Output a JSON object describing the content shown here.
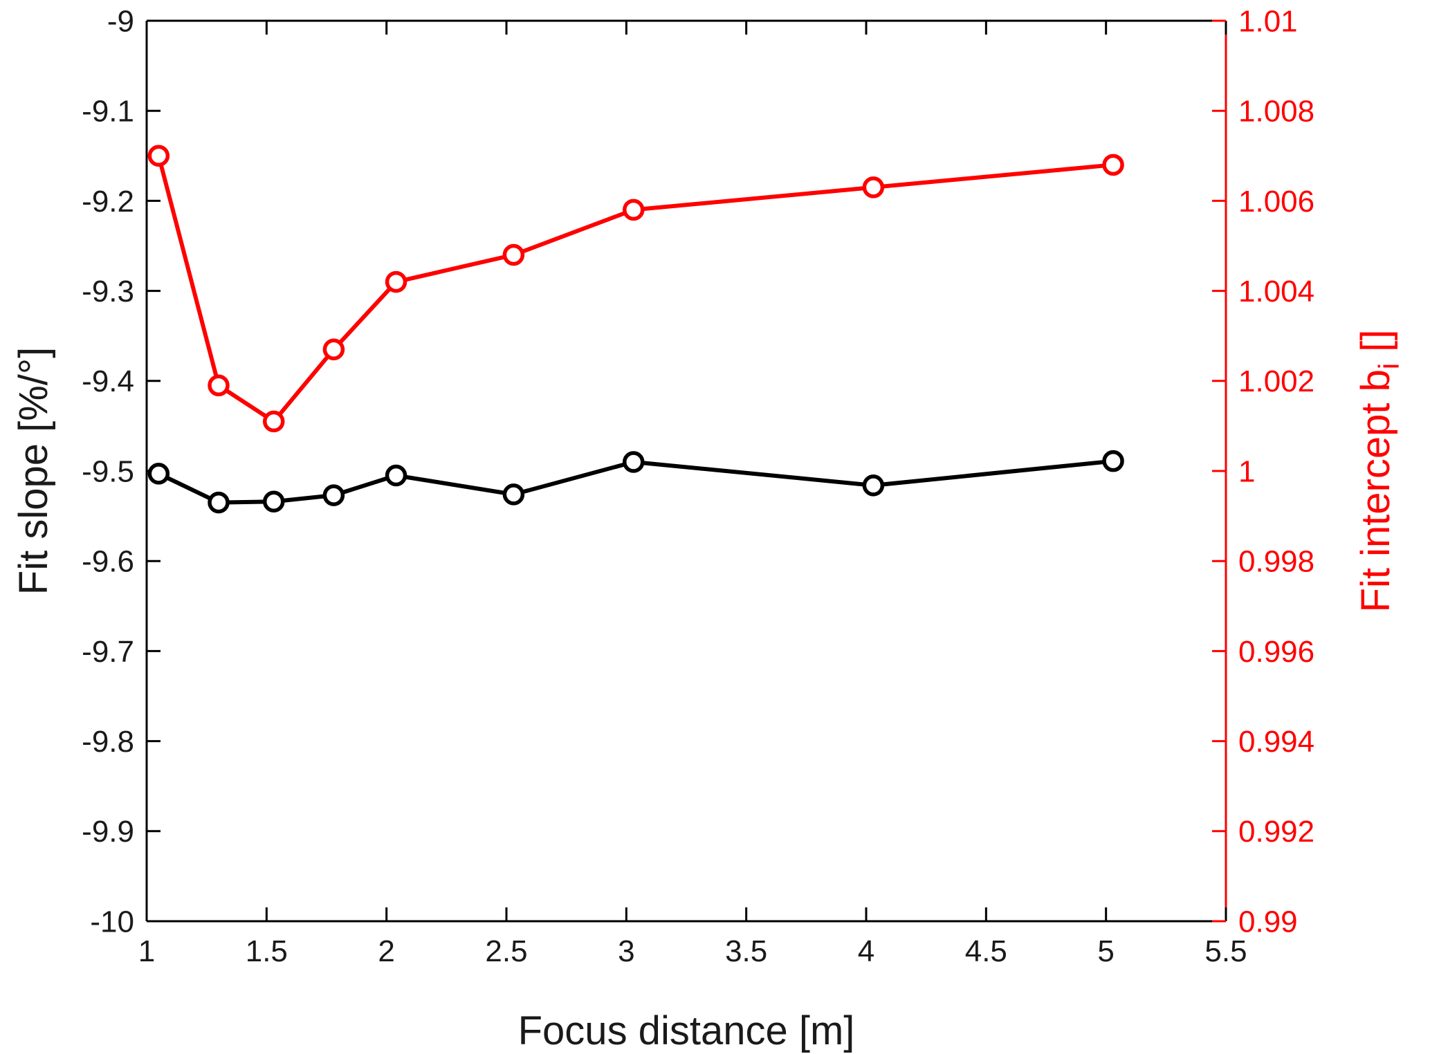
{
  "figure": {
    "background": "#ffffff"
  },
  "colors": {
    "left_axis": "#000000",
    "right_axis": "#ff0000",
    "tick_label": "#1a1a1a",
    "slope_series": "#000000",
    "intercept_series": "#ff0000"
  },
  "chart_data": {
    "type": "line",
    "title": "",
    "xlabel": "Focus distance [m]",
    "ylabel_left": "Fit slope [%/°]",
    "ylabel_right": {
      "pre": "Fit intercept b",
      "sub": "i",
      "post": " []"
    },
    "xlim": [
      1,
      5.5
    ],
    "ylim_left": [
      -10,
      -9
    ],
    "ylim_right": [
      0.99,
      1.01
    ],
    "grid": false,
    "legend": "none",
    "x_ticks": [
      1,
      1.5,
      2,
      2.5,
      3,
      3.5,
      4,
      4.5,
      5,
      5.5
    ],
    "x_tick_labels": [
      "1",
      "1.5",
      "2",
      "2.5",
      "3",
      "3.5",
      "4",
      "4.5",
      "5",
      "5.5"
    ],
    "y_ticks_left": [
      -9,
      -9.1,
      -9.2,
      -9.3,
      -9.4,
      -9.5,
      -9.6,
      -9.7,
      -9.8,
      -9.9,
      -10
    ],
    "y_tick_labels_left": [
      "-9",
      "-9.1",
      "-9.2",
      "-9.3",
      "-9.4",
      "-9.5",
      "-9.6",
      "-9.7",
      "-9.8",
      "-9.9",
      "-10"
    ],
    "y_ticks_right": [
      1.01,
      1.008,
      1.006,
      1.004,
      1.002,
      1,
      0.998,
      0.996,
      0.994,
      0.992,
      0.99
    ],
    "y_tick_labels_right": [
      "1.01",
      "1.008",
      "1.006",
      "1.004",
      "1.002",
      "1",
      "0.998",
      "0.996",
      "0.994",
      "0.992",
      "0.99"
    ],
    "series": [
      {
        "name": "fit-slope",
        "axis": "left",
        "color": "#000000",
        "marker": "circle-open",
        "x": [
          1.05,
          1.3,
          1.53,
          1.78,
          2.04,
          2.53,
          3.03,
          4.03,
          5.03
        ],
        "y": [
          -9.503,
          -9.535,
          -9.534,
          -9.527,
          -9.505,
          -9.526,
          -9.49,
          -9.516,
          -9.489
        ]
      },
      {
        "name": "fit-intercept",
        "axis": "right",
        "color": "#ff0000",
        "marker": "circle-open",
        "x": [
          1.05,
          1.3,
          1.53,
          1.78,
          2.04,
          2.53,
          3.03,
          4.03,
          5.03
        ],
        "y": [
          1.007,
          1.0019,
          1.0011,
          1.0027,
          1.0042,
          1.0048,
          1.0058,
          1.0063,
          1.0068
        ]
      }
    ]
  }
}
